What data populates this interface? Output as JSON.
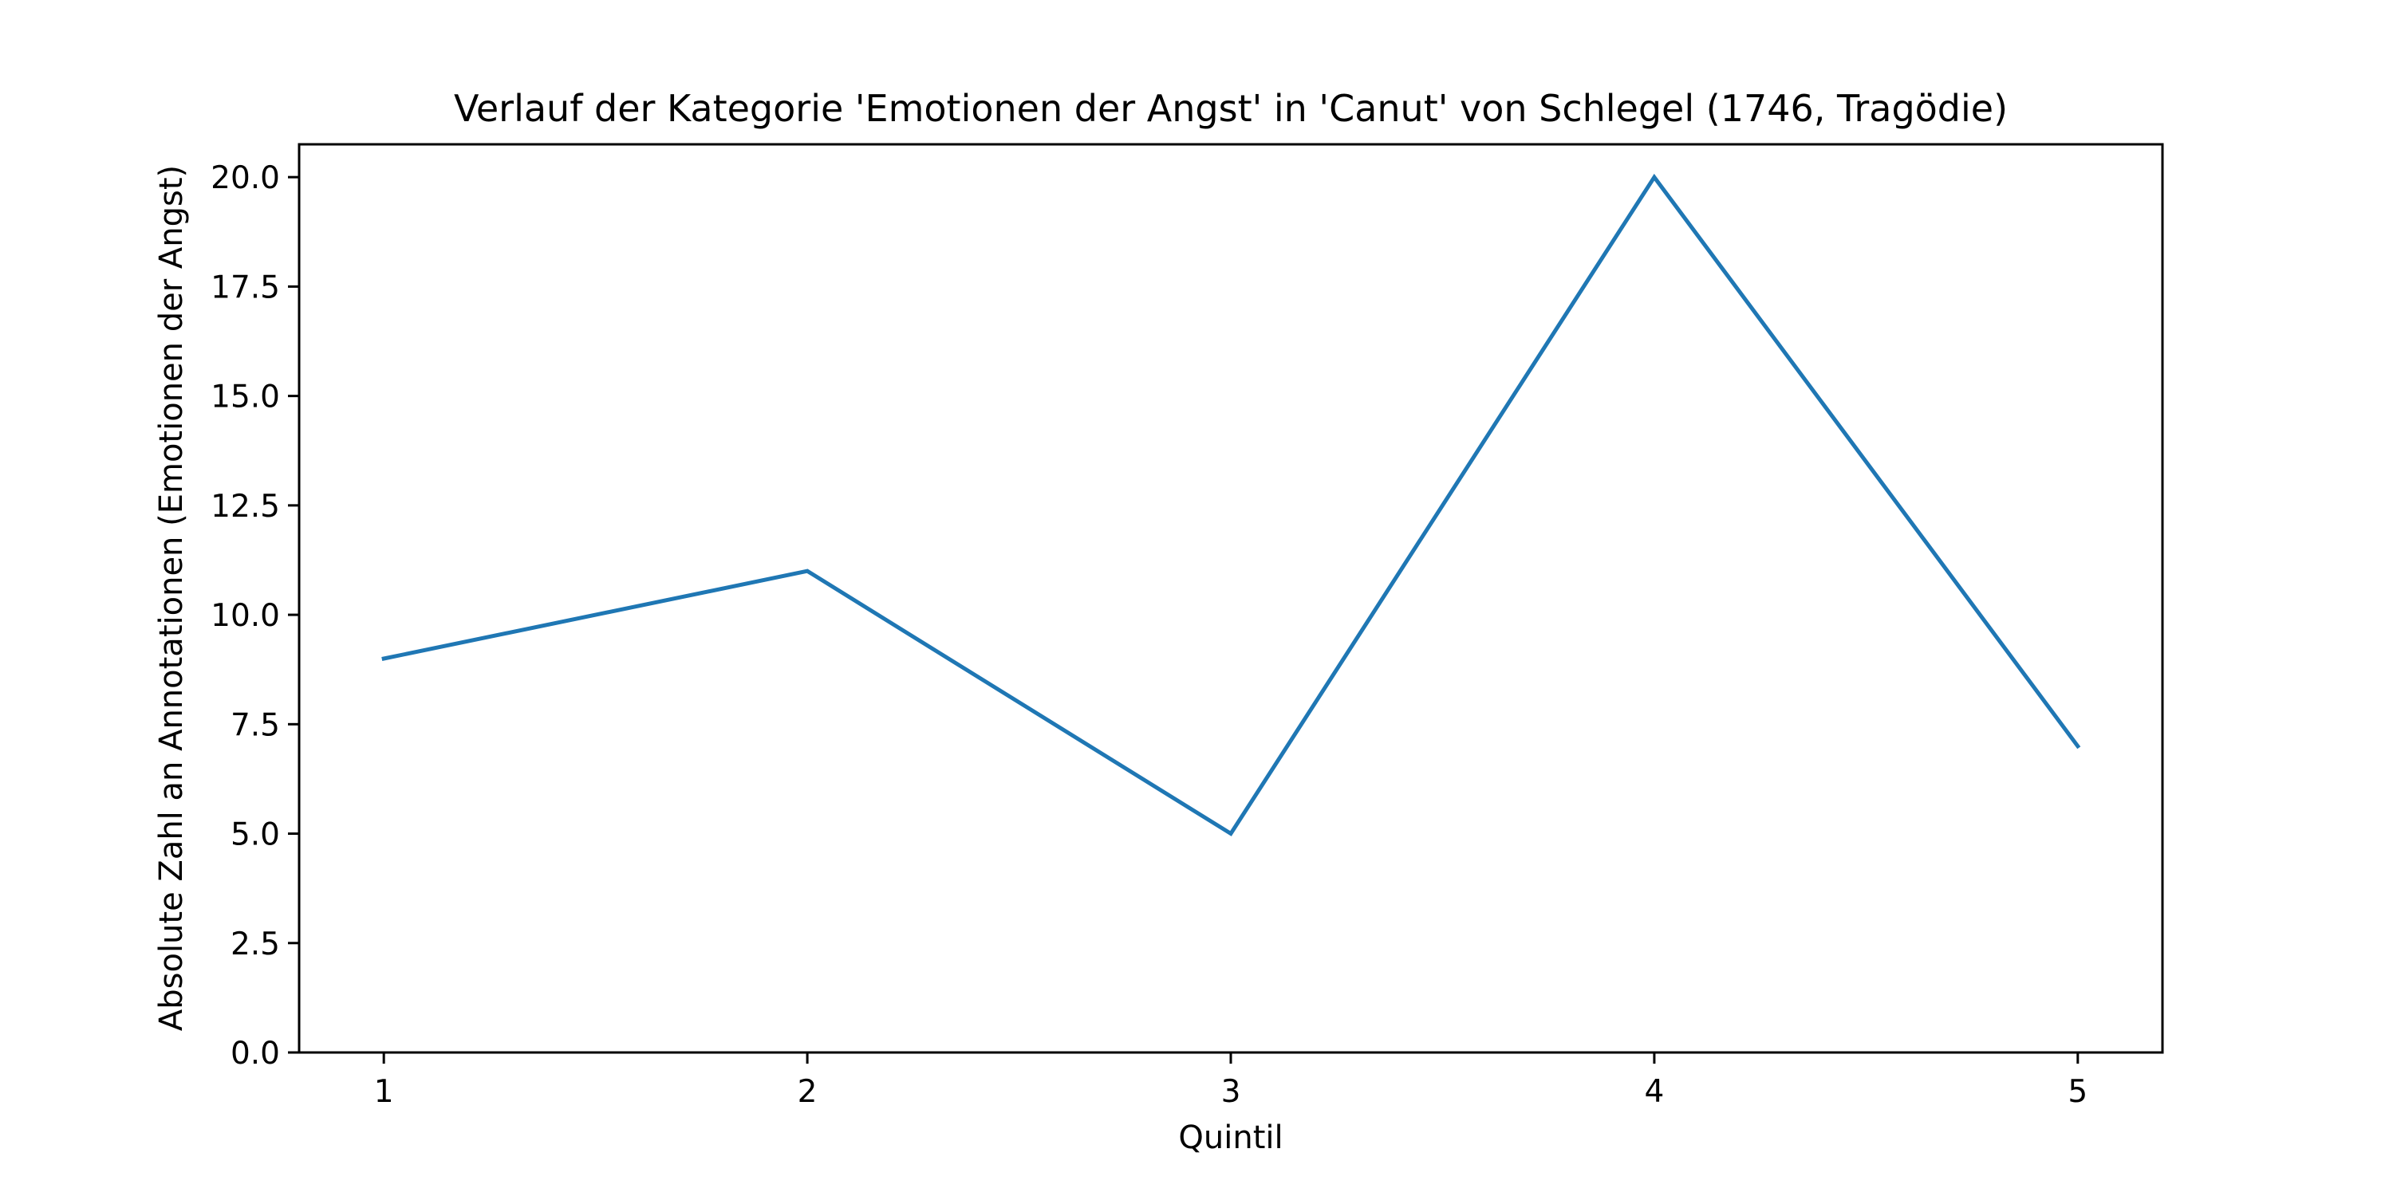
{
  "chart_data": {
    "type": "line",
    "title": "Verlauf der Kategorie 'Emotionen der Angst' in 'Canut' von Schlegel (1746, Tragödie)",
    "xlabel": "Quintil",
    "ylabel": "Absolute Zahl an Annotationen (Emotionen der Angst)",
    "x": [
      1,
      2,
      3,
      4,
      5
    ],
    "series": [
      {
        "values": [
          9,
          11,
          5,
          20,
          7
        ],
        "color": "#1f77b4"
      }
    ],
    "xlim": [
      0.8,
      5.2
    ],
    "ylim": [
      0,
      20.75
    ],
    "xticks": [
      1,
      2,
      3,
      4,
      5
    ],
    "xtick_labels": [
      "1",
      "2",
      "3",
      "4",
      "5"
    ],
    "yticks": [
      0,
      2.5,
      5,
      7.5,
      10,
      12.5,
      15,
      17.5,
      20
    ],
    "ytick_labels": [
      "0.0",
      "2.5",
      "5.0",
      "7.5",
      "10.0",
      "12.5",
      "15.0",
      "17.5",
      "20.0"
    ],
    "grid": false,
    "legend": false
  }
}
